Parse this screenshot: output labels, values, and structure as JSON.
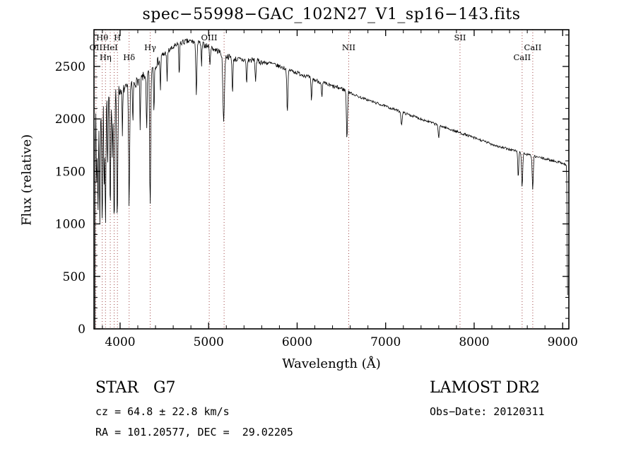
{
  "figure": {
    "title": "spec−55998−GAC_102N27_V1_sp16−143.fits",
    "annotations": {
      "class_label": "STAR   G7",
      "cz": "cz = 64.8 ± 22.8 km/s",
      "radec": "RA = 101.20577, DEC =  29.02205",
      "survey": "LAMOST DR2",
      "obs_date": "Obs−Date: 20120311"
    }
  },
  "chart_data": {
    "type": "line",
    "title": "spec−55998−GAC_102N27_V1_sp16−143.fits",
    "xlabel": "Wavelength (Å)",
    "ylabel": "Flux (relative)",
    "xlim": [
      3705,
      9070
    ],
    "ylim": [
      0,
      2850
    ],
    "x_major_ticks": [
      4000,
      5000,
      6000,
      7000,
      8000,
      9000
    ],
    "x_minor_step": 200,
    "y_major_ticks": [
      0,
      500,
      1000,
      1500,
      2000,
      2500
    ],
    "y_minor_step": 100,
    "grid": false,
    "legend": null,
    "line_color": "#000000",
    "marker_line_color": "#a04848",
    "line_markers": [
      {
        "label": "OII",
        "wl": 3727,
        "row": 1
      },
      {
        "label": "Hθ",
        "wl": 3798,
        "row": 0
      },
      {
        "label": "Hη",
        "wl": 3835,
        "row": 2
      },
      {
        "label": "HeI",
        "wl": 3889,
        "row": 1
      },
      {
        "label": "",
        "wl": 3933,
        "row": 0
      },
      {
        "label": "H",
        "wl": 3970,
        "row": 0
      },
      {
        "label": "Hδ",
        "wl": 4102,
        "row": 2
      },
      {
        "label": "Hγ",
        "wl": 4340,
        "row": 1
      },
      {
        "label": "OIII",
        "wl": 5007,
        "row": 0
      },
      {
        "label": "",
        "wl": 5175,
        "row": 0
      },
      {
        "label": "NII",
        "wl": 6583,
        "row": 1
      },
      {
        "label": "SII",
        "wl": 7840,
        "row": 0
      },
      {
        "label": "CaII",
        "wl": 8542,
        "row": 2
      },
      {
        "label": "CaII",
        "wl": 8662,
        "row": 1
      }
    ],
    "spectrum": {
      "sample_step": 5,
      "continuum": [
        [
          3716,
          30
        ],
        [
          3722,
          2230
        ],
        [
          3740,
          2130
        ],
        [
          3760,
          2080
        ],
        [
          3800,
          2150
        ],
        [
          3850,
          2200
        ],
        [
          3900,
          2230
        ],
        [
          3960,
          2260
        ],
        [
          4020,
          2280
        ],
        [
          4100,
          2300
        ],
        [
          4200,
          2360
        ],
        [
          4300,
          2430
        ],
        [
          4400,
          2520
        ],
        [
          4500,
          2620
        ],
        [
          4600,
          2680
        ],
        [
          4700,
          2730
        ],
        [
          4800,
          2740
        ],
        [
          4900,
          2720
        ],
        [
          5000,
          2690
        ],
        [
          5100,
          2650
        ],
        [
          5200,
          2600
        ],
        [
          5300,
          2570
        ],
        [
          5400,
          2560
        ],
        [
          5500,
          2560
        ],
        [
          5600,
          2540
        ],
        [
          5700,
          2530
        ],
        [
          5800,
          2500
        ],
        [
          5900,
          2470
        ],
        [
          6000,
          2440
        ],
        [
          6100,
          2410
        ],
        [
          6200,
          2370
        ],
        [
          6300,
          2340
        ],
        [
          6400,
          2310
        ],
        [
          6500,
          2290
        ],
        [
          6600,
          2250
        ],
        [
          6700,
          2210
        ],
        [
          6800,
          2180
        ],
        [
          6900,
          2150
        ],
        [
          7000,
          2120
        ],
        [
          7100,
          2090
        ],
        [
          7200,
          2060
        ],
        [
          7300,
          2030
        ],
        [
          7400,
          2000
        ],
        [
          7500,
          1970
        ],
        [
          7600,
          1940
        ],
        [
          7700,
          1910
        ],
        [
          7800,
          1880
        ],
        [
          7900,
          1850
        ],
        [
          8000,
          1820
        ],
        [
          8100,
          1790
        ],
        [
          8200,
          1760
        ],
        [
          8300,
          1730
        ],
        [
          8400,
          1710
        ],
        [
          8500,
          1690
        ],
        [
          8600,
          1660
        ],
        [
          8700,
          1640
        ],
        [
          8800,
          1620
        ],
        [
          8900,
          1600
        ],
        [
          9000,
          1580
        ],
        [
          9030,
          1565
        ],
        [
          9045,
          1555
        ],
        [
          9052,
          700
        ],
        [
          9058,
          120
        ]
      ],
      "absorption_features": [
        [
          3734,
          800,
          5
        ],
        [
          3750,
          950,
          5
        ],
        [
          3771,
          1050,
          5
        ],
        [
          3798,
          1150,
          5
        ],
        [
          3820,
          850,
          4
        ],
        [
          3835,
          1150,
          5
        ],
        [
          3860,
          700,
          4
        ],
        [
          3889,
          1150,
          5
        ],
        [
          3912,
          600,
          4
        ],
        [
          3933,
          1250,
          6
        ],
        [
          3968,
          1200,
          6
        ],
        [
          4026,
          450,
          4
        ],
        [
          4102,
          1100,
          6
        ],
        [
          4144,
          380,
          4
        ],
        [
          4227,
          480,
          4
        ],
        [
          4300,
          550,
          5
        ],
        [
          4340,
          1300,
          6
        ],
        [
          4383,
          450,
          4
        ],
        [
          4455,
          300,
          4
        ],
        [
          4531,
          300,
          4
        ],
        [
          4668,
          320,
          4
        ],
        [
          4861,
          480,
          6
        ],
        [
          4920,
          230,
          4
        ],
        [
          5015,
          200,
          4
        ],
        [
          5170,
          620,
          9
        ],
        [
          5270,
          330,
          5
        ],
        [
          5430,
          230,
          5
        ],
        [
          5530,
          200,
          5
        ],
        [
          5890,
          420,
          6
        ],
        [
          6162,
          220,
          5
        ],
        [
          6280,
          150,
          5
        ],
        [
          6563,
          450,
          6
        ],
        [
          7180,
          130,
          6
        ],
        [
          7600,
          120,
          6
        ],
        [
          8498,
          260,
          5
        ],
        [
          8542,
          330,
          6
        ],
        [
          8662,
          320,
          6
        ]
      ],
      "noise_regions": [
        {
          "range": [
            3700,
            4000
          ],
          "amp": 70
        },
        {
          "range": [
            4000,
            4500
          ],
          "amp": 45
        },
        {
          "range": [
            4500,
            5600
          ],
          "amp": 28
        },
        {
          "range": [
            5600,
            6600
          ],
          "amp": 20
        },
        {
          "range": [
            6600,
            9100
          ],
          "amp": 12
        }
      ]
    }
  }
}
